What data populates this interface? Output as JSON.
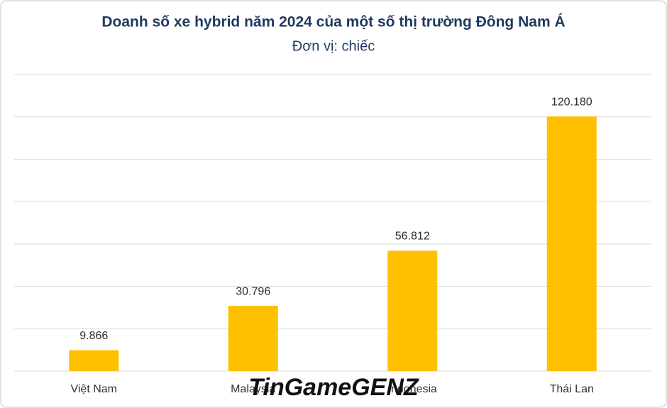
{
  "chart_data": {
    "type": "bar",
    "title": "Doanh số xe hybrid năm 2024 của một số thị trường Đông Nam Á",
    "subtitle": "Đơn vị: chiếc",
    "categories": [
      "Việt Nam",
      "Malaysia",
      "Indonesia",
      "Thái Lan"
    ],
    "values": [
      9866,
      30796,
      56812,
      120180
    ],
    "value_labels": [
      "9.866",
      "30.796",
      "56.812",
      "120.180"
    ],
    "color": "#ffc000",
    "ylim": [
      0,
      140000
    ],
    "yticks": [
      0,
      20000,
      40000,
      60000,
      80000,
      100000,
      120000,
      140000
    ],
    "grid": true,
    "watermark": "TinGameGENZ"
  }
}
